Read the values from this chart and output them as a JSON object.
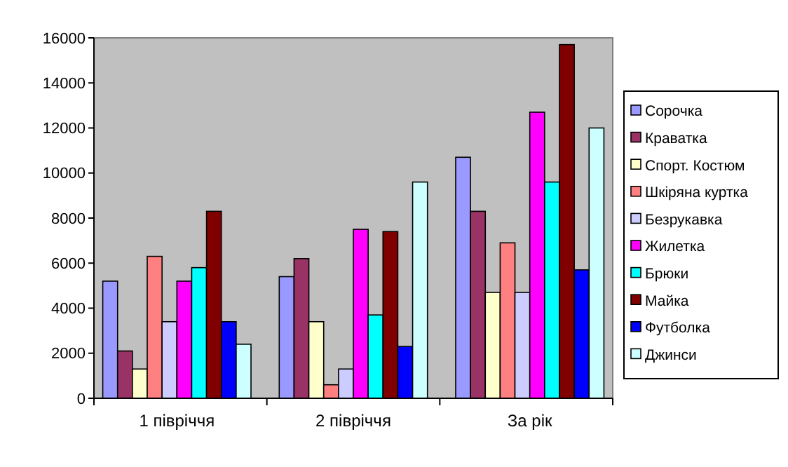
{
  "chart_data": {
    "type": "bar",
    "categories": [
      "1 півріччя",
      "2 півріччя",
      "За рік"
    ],
    "series": [
      {
        "name": "Сорочка",
        "color": "#9999ff",
        "values": [
          5200,
          5400,
          10700
        ]
      },
      {
        "name": "Краватка",
        "color": "#993366",
        "values": [
          2100,
          6200,
          8300
        ]
      },
      {
        "name": "Спорт. Костюм",
        "color": "#ffffcc",
        "values": [
          1300,
          3400,
          4700
        ]
      },
      {
        "name": "Шкіряна куртка",
        "color": "#ff8080",
        "values": [
          6300,
          600,
          6900
        ]
      },
      {
        "name": "Безрукавка",
        "color": "#ccccff",
        "values": [
          3400,
          1300,
          4700
        ]
      },
      {
        "name": "Жилетка",
        "color": "#ff00ff",
        "values": [
          5200,
          7500,
          12700
        ]
      },
      {
        "name": "Брюки",
        "color": "#00ffff",
        "values": [
          5800,
          3700,
          9600
        ]
      },
      {
        "name": "Майка",
        "color": "#800000",
        "values": [
          8300,
          7400,
          15700
        ]
      },
      {
        "name": "Футболка",
        "color": "#0000ff",
        "values": [
          3400,
          2300,
          5700
        ]
      },
      {
        "name": "Джинси",
        "color": "#ccffff",
        "values": [
          2400,
          9600,
          12000
        ]
      }
    ],
    "ylim": [
      0,
      16000
    ],
    "yticks": [
      0,
      2000,
      4000,
      6000,
      8000,
      10000,
      12000,
      14000,
      16000
    ],
    "grid": false,
    "legend": "right"
  }
}
